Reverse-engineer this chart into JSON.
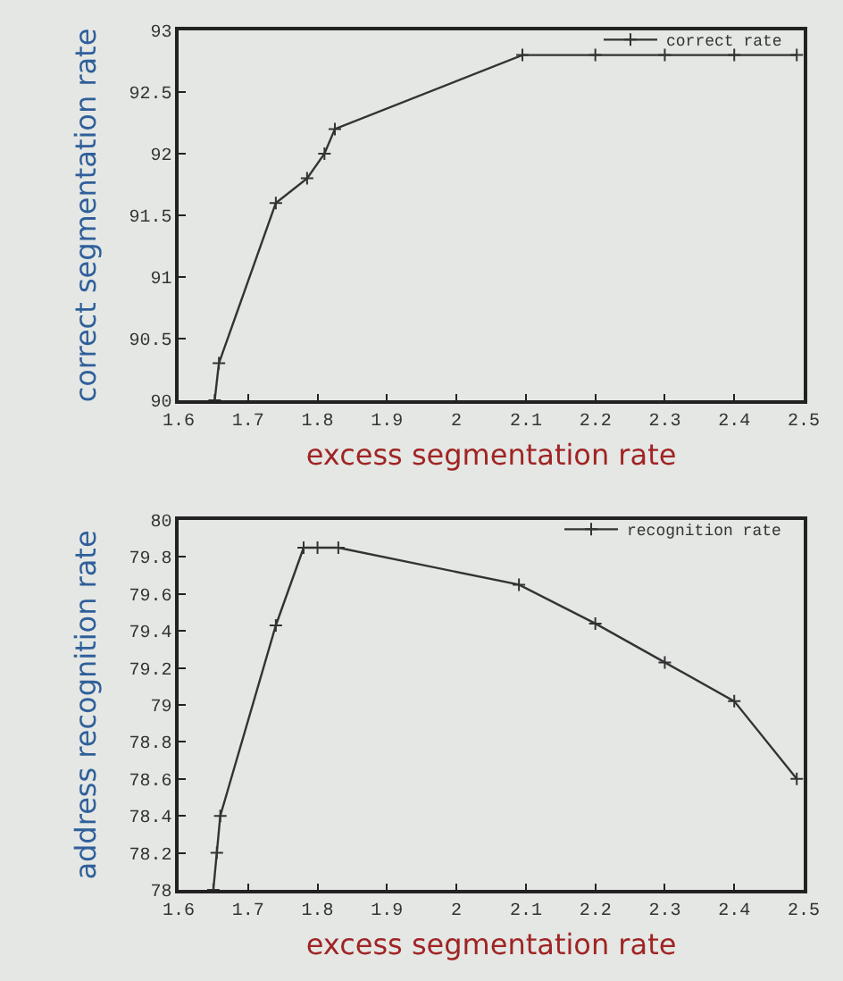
{
  "chart_data": [
    {
      "type": "line",
      "xlabel": "excess segmentation rate",
      "ylabel": "correct segmentation rate",
      "legend": "top right",
      "marker": "cross",
      "line_style": "solid",
      "grid": false,
      "xlim": [
        1.6,
        2.5
      ],
      "xticks": [
        1.6,
        1.7,
        1.8,
        1.9,
        2,
        2.1,
        2.2,
        2.3,
        2.4,
        2.5
      ],
      "ylim": [
        90,
        93
      ],
      "yticks": [
        90,
        90.5,
        91,
        91.5,
        92,
        92.5,
        93
      ],
      "series": [
        {
          "name": "correct rate",
          "color": "#333333",
          "x": [
            1.652,
            1.658,
            1.74,
            1.785,
            1.81,
            1.825,
            2.095,
            2.2,
            2.3,
            2.4,
            2.49
          ],
          "values": [
            90,
            90.3,
            91.6,
            91.8,
            92.0,
            92.2,
            92.8,
            92.8,
            92.8,
            92.8,
            92.8
          ]
        }
      ]
    },
    {
      "type": "line",
      "xlabel": "excess segmentation rate",
      "ylabel": "address recognition rate",
      "legend": "top right",
      "marker": "cross",
      "line_style": "solid",
      "grid": false,
      "xlim": [
        1.6,
        2.5
      ],
      "xticks": [
        1.6,
        1.7,
        1.8,
        1.9,
        2,
        2.1,
        2.2,
        2.3,
        2.4,
        2.5
      ],
      "ylim": [
        78,
        80
      ],
      "yticks": [
        78,
        78.2,
        78.4,
        78.6,
        78.8,
        79,
        79.2,
        79.4,
        79.6,
        79.8,
        80
      ],
      "series": [
        {
          "name": "recognition rate",
          "color": "#333333",
          "x": [
            1.65,
            1.655,
            1.66,
            1.74,
            1.78,
            1.8,
            1.83,
            2.09,
            2.2,
            2.3,
            2.4,
            2.49
          ],
          "values": [
            78,
            78.2,
            78.4,
            79.43,
            79.85,
            79.85,
            79.85,
            79.65,
            79.44,
            79.23,
            79.02,
            78.6
          ]
        }
      ]
    }
  ]
}
